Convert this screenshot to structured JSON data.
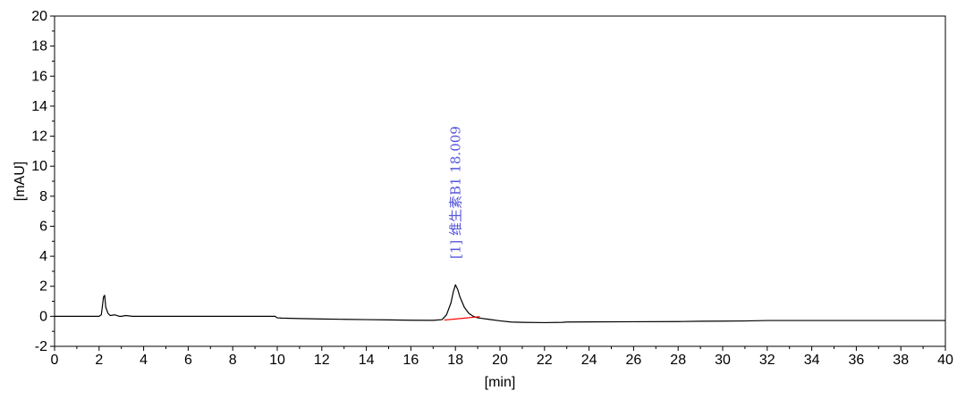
{
  "chart_data": {
    "type": "line",
    "xlabel": "[min]",
    "ylabel": "[mAU]",
    "xlim": [
      0,
      40
    ],
    "ylim": [
      -2,
      20
    ],
    "x_ticks": [
      0,
      2,
      4,
      6,
      8,
      10,
      12,
      14,
      16,
      18,
      20,
      22,
      24,
      26,
      28,
      30,
      32,
      34,
      36,
      38,
      40
    ],
    "y_ticks": [
      -2,
      0,
      2,
      4,
      6,
      8,
      10,
      12,
      14,
      16,
      18,
      20
    ],
    "grid": false,
    "series": [
      {
        "color": "#000000",
        "x": [
          0,
          2.0,
          2.1,
          2.2,
          2.25,
          2.3,
          2.4,
          2.5,
          2.7,
          2.9,
          3.0,
          3.2,
          3.5,
          4.0,
          6.0,
          8.0,
          9.9,
          10.0,
          10.2,
          11.0,
          12.0,
          13.0,
          14.0,
          15.0,
          16.0,
          17.0,
          17.4,
          17.6,
          17.8,
          17.9,
          18.0,
          18.1,
          18.2,
          18.4,
          18.6,
          18.8,
          19.0,
          19.5,
          20.0,
          20.5,
          21.0,
          22.0,
          22.8,
          23.0,
          24.0,
          26.0,
          28.0,
          29.0,
          30.0,
          31.0,
          32.0,
          34.0,
          36.0,
          38.0,
          40.0
        ],
        "y": [
          0.0,
          0.0,
          0.1,
          1.3,
          1.4,
          0.6,
          0.2,
          0.05,
          0.1,
          0.0,
          0.0,
          0.05,
          0.0,
          0.0,
          0.0,
          0.0,
          0.0,
          -0.1,
          -0.12,
          -0.15,
          -0.18,
          -0.2,
          -0.22,
          -0.24,
          -0.26,
          -0.27,
          -0.22,
          0.1,
          0.9,
          1.6,
          2.1,
          1.8,
          1.3,
          0.6,
          0.2,
          0.0,
          -0.1,
          -0.2,
          -0.3,
          -0.38,
          -0.4,
          -0.42,
          -0.4,
          -0.38,
          -0.37,
          -0.36,
          -0.35,
          -0.33,
          -0.32,
          -0.31,
          -0.28,
          -0.28,
          -0.28,
          -0.28,
          -0.28
        ]
      },
      {
        "color": "#ff0000",
        "x": [
          17.5,
          19.1
        ],
        "y": [
          -0.25,
          -0.02
        ]
      }
    ],
    "annotations": [
      {
        "text": "[1] 维生素B1 18.009",
        "x": 18.009,
        "color": "#5555dd"
      }
    ]
  }
}
